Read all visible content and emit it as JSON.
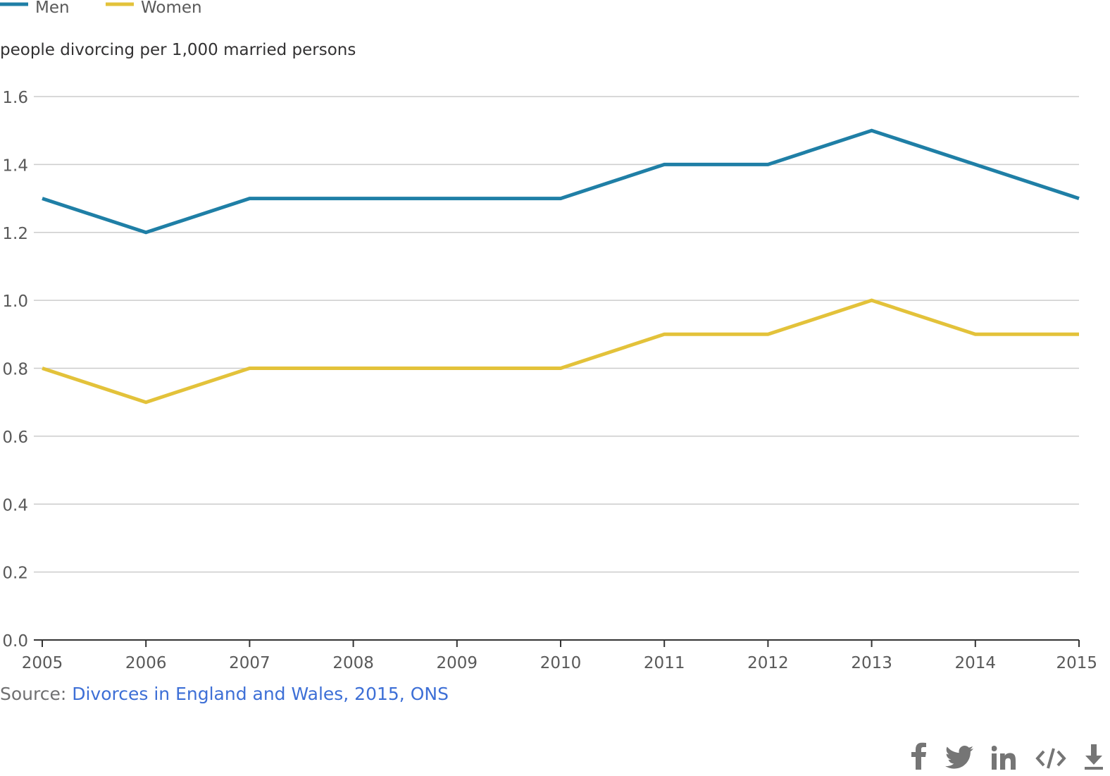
{
  "chart_data": {
    "type": "line",
    "ylabel": "people divorcing per 1,000 married persons",
    "x": [
      "2005",
      "2006",
      "2007",
      "2008",
      "2009",
      "2010",
      "2011",
      "2012",
      "2013",
      "2014",
      "2015"
    ],
    "ylim": [
      0,
      1.6
    ],
    "yticks": [
      "0.0",
      "0.2",
      "0.4",
      "0.6",
      "0.8",
      "1.0",
      "1.2",
      "1.4",
      "1.6"
    ],
    "series": [
      {
        "name": "Men",
        "color": "#1f7fa6",
        "values": [
          1.3,
          1.2,
          1.3,
          1.3,
          1.3,
          1.3,
          1.4,
          1.4,
          1.5,
          1.4,
          1.3
        ]
      },
      {
        "name": "Women",
        "color": "#e3c23a",
        "values": [
          0.8,
          0.7,
          0.8,
          0.8,
          0.8,
          0.8,
          0.9,
          0.9,
          1.0,
          0.9,
          0.9
        ]
      }
    ],
    "grid": "horizontal"
  },
  "source": {
    "prefix": "Source: ",
    "link_text": "Divorces in England and Wales, 2015, ONS",
    "link_color": "#3d6fd6"
  },
  "share": {
    "icons": [
      "facebook-icon",
      "twitter-icon",
      "linkedin-icon",
      "embed-icon",
      "download-icon"
    ]
  }
}
